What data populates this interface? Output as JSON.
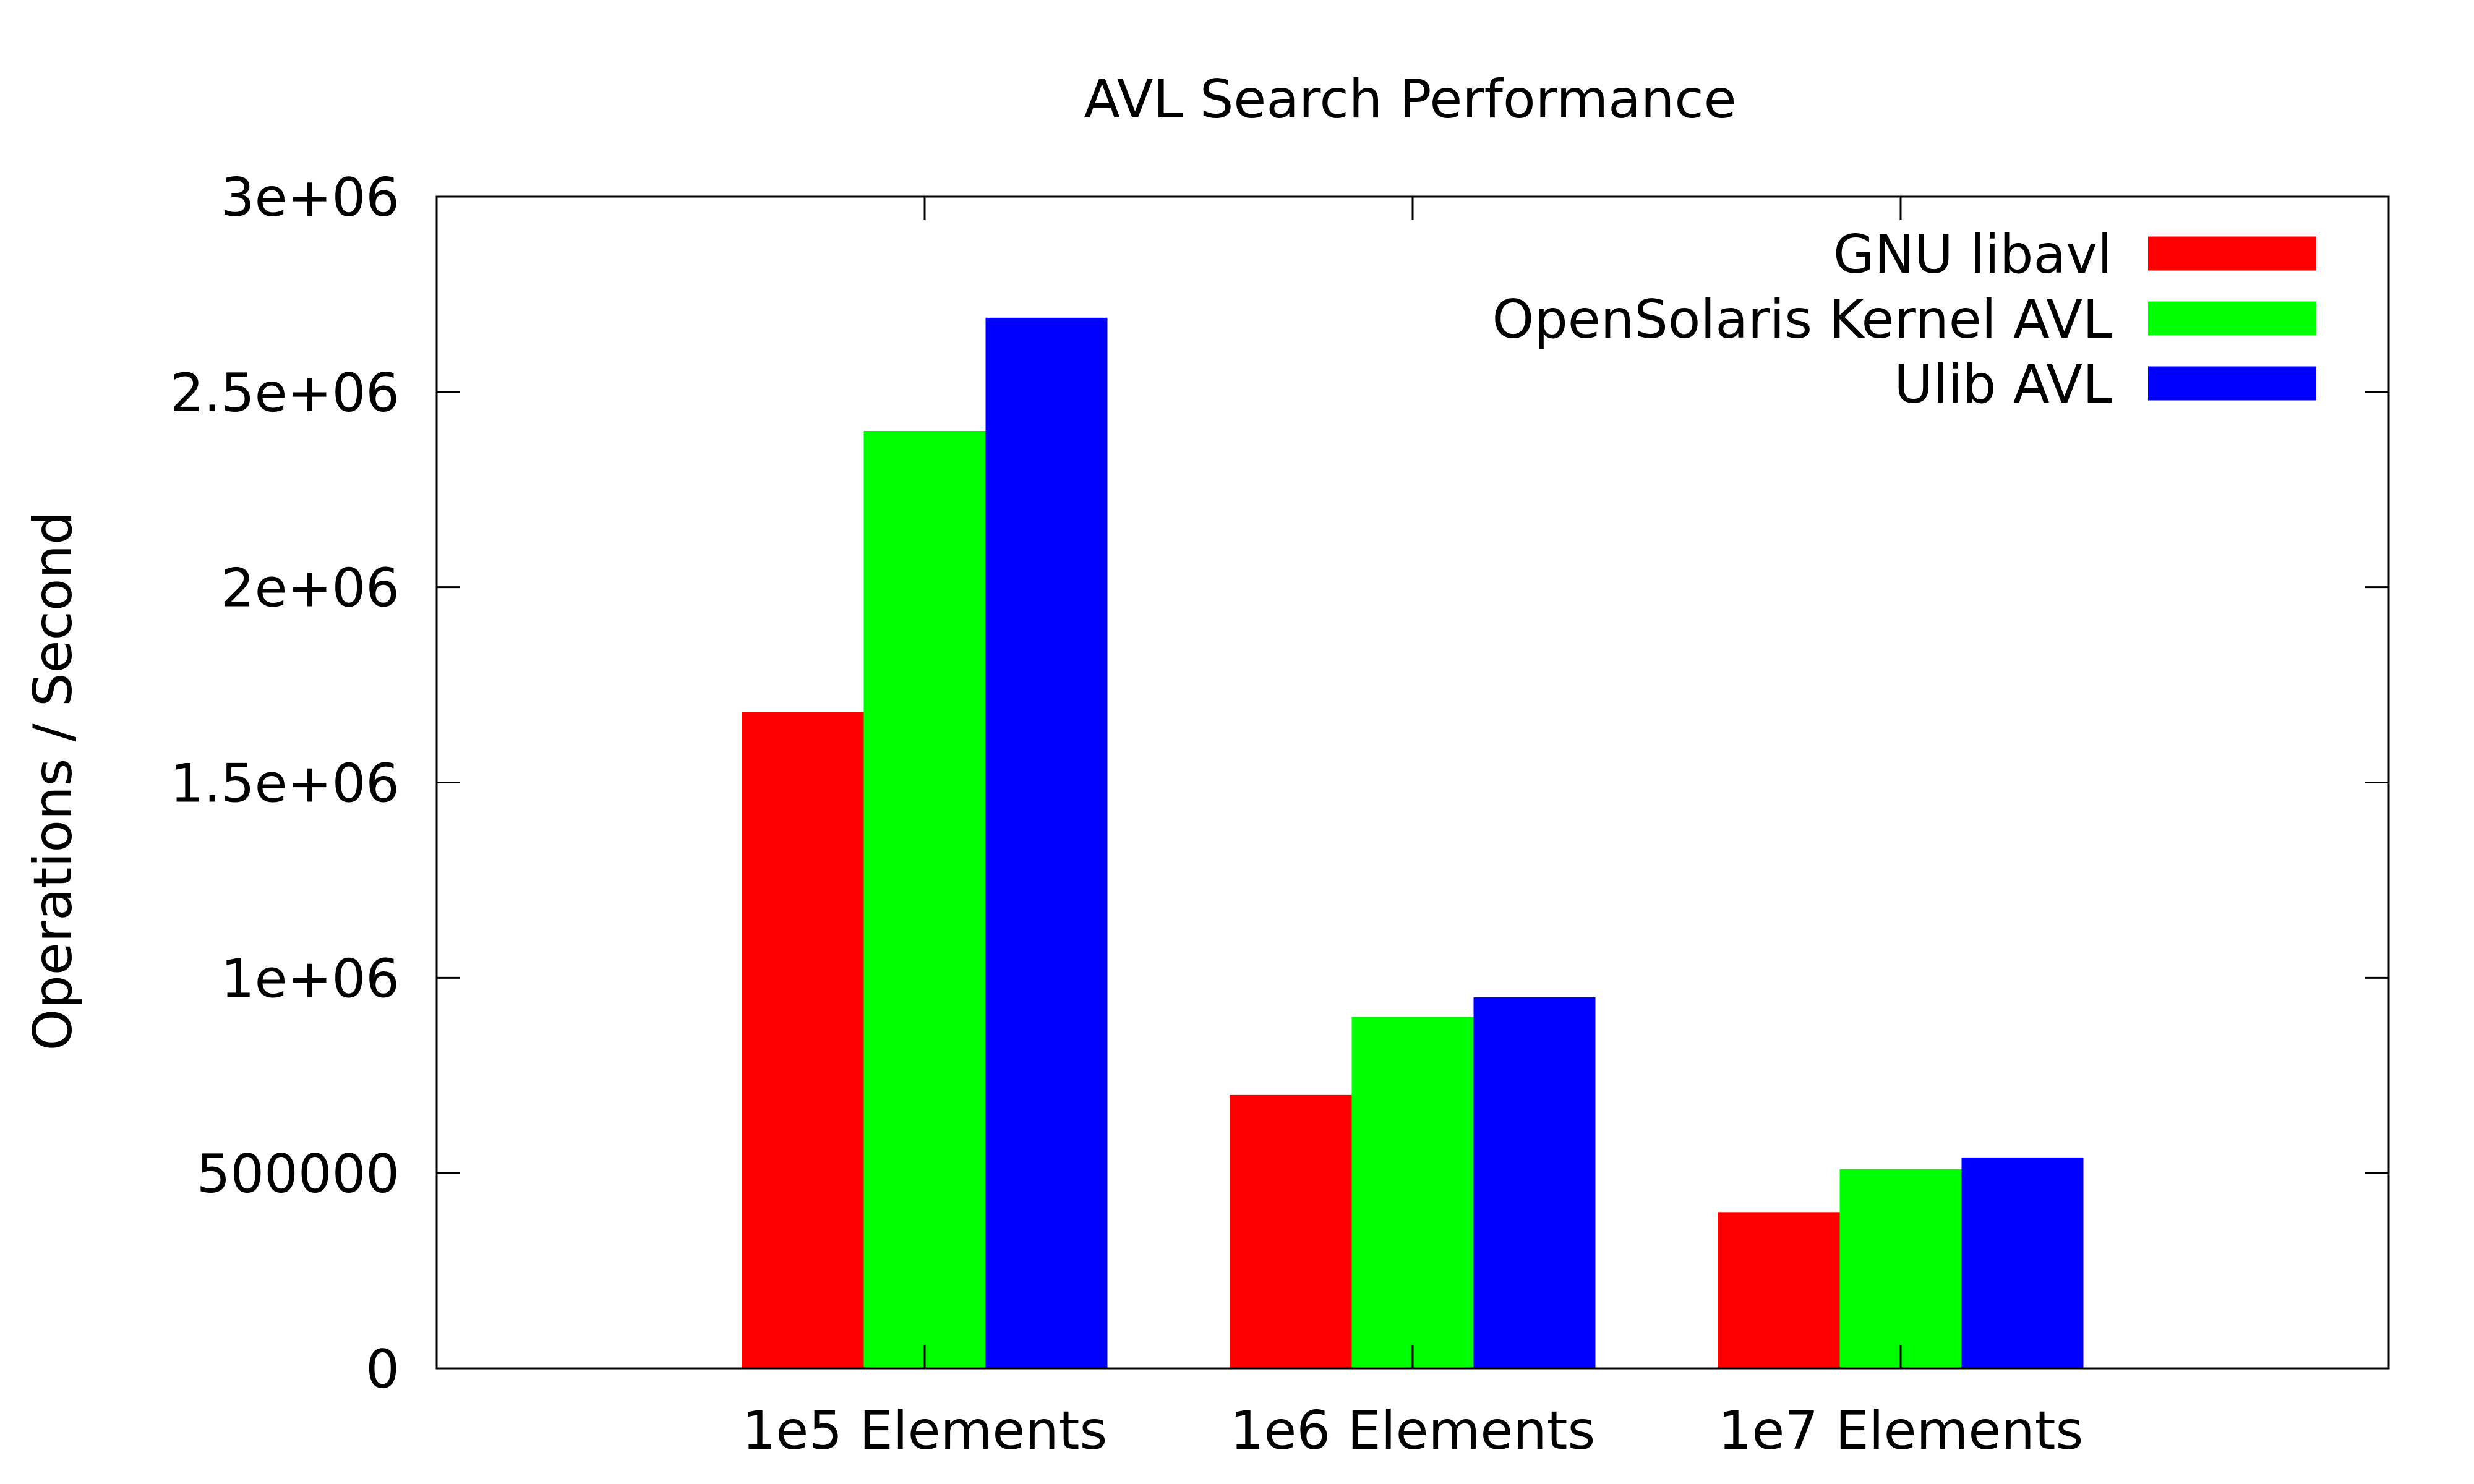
{
  "chart_data": {
    "type": "bar",
    "title": "AVL Search Performance",
    "xlabel": "",
    "ylabel": "Operations / Second",
    "categories": [
      "1e5 Elements",
      "1e6 Elements",
      "1e7 Elements"
    ],
    "ylim": [
      0,
      3000000
    ],
    "yticks": [
      0,
      500000,
      1000000,
      1500000,
      2000000,
      2500000,
      3000000
    ],
    "ytick_labels": [
      "0",
      "500000",
      "1e+06",
      "1.5e+06",
      "2e+06",
      "2.5e+06",
      "3e+06"
    ],
    "grid": false,
    "legend_position": "top-right",
    "series": [
      {
        "name": "GNU libavl",
        "color": "#ff0000",
        "values": [
          1680000,
          700000,
          400000
        ]
      },
      {
        "name": "OpenSolaris Kernel AVL",
        "color": "#00ff00",
        "values": [
          2400000,
          900000,
          510000
        ]
      },
      {
        "name": "Ulib AVL",
        "color": "#0000ff",
        "values": [
          2690000,
          950000,
          540000
        ]
      }
    ]
  }
}
